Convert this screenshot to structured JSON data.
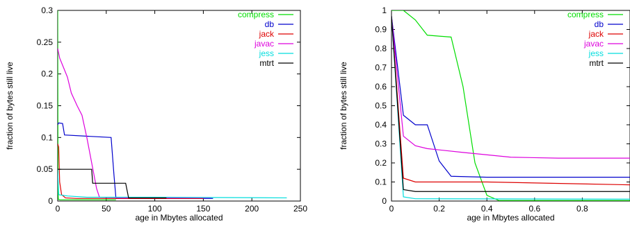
{
  "chart_data": [
    {
      "type": "line",
      "xlabel": "age in Mbytes allocated",
      "ylabel": "fraction of bytes still live",
      "xlim": [
        0,
        250
      ],
      "ylim": [
        0,
        0.3
      ],
      "xticks": [
        0,
        50,
        100,
        150,
        200,
        250
      ],
      "xtick_labels": [
        "0",
        "50",
        "100",
        "150",
        "200",
        "250"
      ],
      "yticks": [
        0,
        0.05,
        0.1,
        0.15,
        0.2,
        0.25,
        0.3
      ],
      "ytick_labels": [
        "0",
        "0.05",
        "0.1",
        "0.15",
        "0.2",
        "0.25",
        "0.3"
      ],
      "grid": false,
      "legend_position": "top-right",
      "series": [
        {
          "name": "compress",
          "color": "#00dd00",
          "points": [
            [
              0,
              0.3
            ],
            [
              0.3,
              0.02
            ],
            [
              0.6,
              0.003
            ],
            [
              2,
              0.002
            ],
            [
              40,
              0.002
            ],
            [
              60,
              0.002
            ]
          ]
        },
        {
          "name": "db",
          "color": "#0000cc",
          "points": [
            [
              0,
              0.12
            ],
            [
              1,
              0.123
            ],
            [
              5,
              0.122
            ],
            [
              7,
              0.104
            ],
            [
              55,
              0.1
            ],
            [
              58,
              0.04
            ],
            [
              60,
              0.004
            ],
            [
              160,
              0.004
            ]
          ]
        },
        {
          "name": "jack",
          "color": "#dd0000",
          "points": [
            [
              0,
              0.09
            ],
            [
              1,
              0.085
            ],
            [
              2,
              0.03
            ],
            [
              4,
              0.01
            ],
            [
              8,
              0.005
            ],
            [
              20,
              0.004
            ],
            [
              60,
              0.004
            ],
            [
              150,
              0.004
            ]
          ]
        },
        {
          "name": "javac",
          "color": "#dd00dd",
          "points": [
            [
              0,
              0.24
            ],
            [
              2,
              0.225
            ],
            [
              6,
              0.21
            ],
            [
              10,
              0.195
            ],
            [
              14,
              0.17
            ],
            [
              20,
              0.15
            ],
            [
              25,
              0.135
            ],
            [
              30,
              0.1
            ],
            [
              35,
              0.06
            ],
            [
              40,
              0.02
            ],
            [
              43,
              0.006
            ],
            [
              70,
              0.005
            ],
            [
              158,
              0.005
            ]
          ]
        },
        {
          "name": "jess",
          "color": "#00dddd",
          "points": [
            [
              0,
              0.05
            ],
            [
              1,
              0.01
            ],
            [
              10,
              0.008
            ],
            [
              30,
              0.006
            ],
            [
              100,
              0.006
            ],
            [
              236,
              0.005
            ]
          ]
        },
        {
          "name": "mtrt",
          "color": "#000000",
          "points": [
            [
              0,
              0.05
            ],
            [
              35,
              0.05
            ],
            [
              36,
              0.028
            ],
            [
              70,
              0.028
            ],
            [
              73,
              0.005
            ],
            [
              112,
              0.005
            ]
          ]
        }
      ]
    },
    {
      "type": "line",
      "xlabel": "age in Mbytes allocated",
      "ylabel": "fraction of bytes still live",
      "xlim": [
        0,
        1
      ],
      "ylim": [
        0,
        1
      ],
      "xticks": [
        0,
        0.2,
        0.4,
        0.6,
        0.8
      ],
      "xtick_labels": [
        "0",
        "0.2",
        "0.4",
        "0.6",
        "0.8"
      ],
      "yticks": [
        0,
        0.1,
        0.2,
        0.3,
        0.4,
        0.5,
        0.6,
        0.7,
        0.8,
        0.9,
        1
      ],
      "ytick_labels": [
        "0",
        "0.1",
        "0.2",
        "0.3",
        "0.4",
        "0.5",
        "0.6",
        "0.7",
        "0.8",
        "0.9",
        "1"
      ],
      "grid": false,
      "legend_position": "top-right",
      "series": [
        {
          "name": "compress",
          "color": "#00dd00",
          "points": [
            [
              0,
              1.0
            ],
            [
              0.05,
              1.0
            ],
            [
              0.1,
              0.95
            ],
            [
              0.15,
              0.87
            ],
            [
              0.25,
              0.86
            ],
            [
              0.3,
              0.6
            ],
            [
              0.35,
              0.2
            ],
            [
              0.4,
              0.03
            ],
            [
              0.45,
              0.003
            ],
            [
              1,
              0.003
            ]
          ]
        },
        {
          "name": "db",
          "color": "#0000cc",
          "points": [
            [
              0,
              0.97
            ],
            [
              0.05,
              0.45
            ],
            [
              0.1,
              0.4
            ],
            [
              0.15,
              0.4
            ],
            [
              0.2,
              0.21
            ],
            [
              0.25,
              0.13
            ],
            [
              0.4,
              0.125
            ],
            [
              1,
              0.125
            ]
          ]
        },
        {
          "name": "jack",
          "color": "#dd0000",
          "points": [
            [
              0,
              0.97
            ],
            [
              0.05,
              0.12
            ],
            [
              0.1,
              0.1
            ],
            [
              0.4,
              0.1
            ],
            [
              0.8,
              0.09
            ],
            [
              1,
              0.085
            ]
          ]
        },
        {
          "name": "javac",
          "color": "#dd00dd",
          "points": [
            [
              0,
              0.97
            ],
            [
              0.05,
              0.34
            ],
            [
              0.1,
              0.29
            ],
            [
              0.15,
              0.275
            ],
            [
              0.3,
              0.255
            ],
            [
              0.5,
              0.23
            ],
            [
              0.7,
              0.225
            ],
            [
              1,
              0.225
            ]
          ]
        },
        {
          "name": "jess",
          "color": "#00dddd",
          "points": [
            [
              0,
              0.97
            ],
            [
              0.05,
              0.022
            ],
            [
              0.1,
              0.012
            ],
            [
              1,
              0.01
            ]
          ]
        },
        {
          "name": "mtrt",
          "color": "#000000",
          "points": [
            [
              0,
              0.97
            ],
            [
              0.05,
              0.06
            ],
            [
              0.1,
              0.05
            ],
            [
              1,
              0.05
            ]
          ]
        }
      ]
    }
  ]
}
